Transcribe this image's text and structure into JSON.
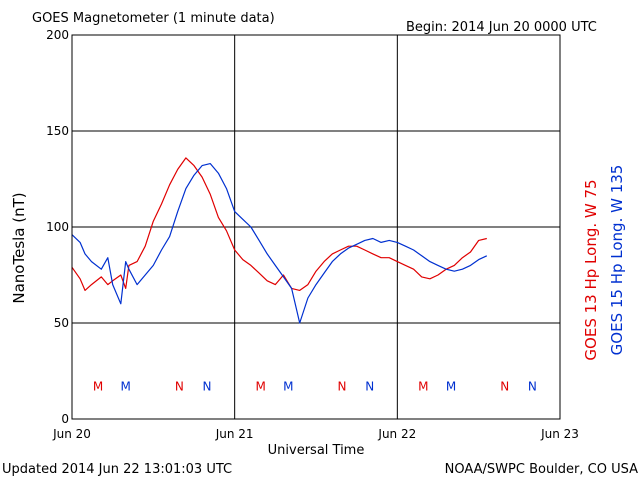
{
  "chart_data": {
    "type": "line",
    "title": "GOES Magnetometer (1 minute data)",
    "begin_label": "Begin:  2014 Jun 20 0000 UTC",
    "xlabel": "Universal Time",
    "ylabel": "NanoTesla (nT)",
    "x_unit_note": "x values are days after Jun 20 0000 UTC",
    "xlim": [
      0,
      3
    ],
    "ylim": [
      0,
      200
    ],
    "grid": true,
    "x_ticks": [
      {
        "x": 0,
        "label": "Jun 20"
      },
      {
        "x": 1,
        "label": "Jun 21"
      },
      {
        "x": 2,
        "label": "Jun 22"
      },
      {
        "x": 3,
        "label": "Jun 23"
      }
    ],
    "y_ticks": [
      {
        "y": 0,
        "label": "0"
      },
      {
        "y": 50,
        "label": "50"
      },
      {
        "y": 100,
        "label": "100"
      },
      {
        "y": 150,
        "label": "150"
      },
      {
        "y": 200,
        "label": "200"
      }
    ],
    "series": [
      {
        "name": "GOES 13 Hp  Long. W 75",
        "color": "#e00000",
        "x": [
          0,
          0.05,
          0.08,
          0.12,
          0.18,
          0.22,
          0.25,
          0.3,
          0.33,
          0.35,
          0.4,
          0.45,
          0.5,
          0.55,
          0.6,
          0.65,
          0.7,
          0.75,
          0.8,
          0.85,
          0.9,
          0.95,
          1.0,
          1.05,
          1.1,
          1.15,
          1.2,
          1.25,
          1.3,
          1.35,
          1.4,
          1.45,
          1.5,
          1.55,
          1.6,
          1.65,
          1.7,
          1.75,
          1.8,
          1.85,
          1.9,
          1.95,
          2.0,
          2.05,
          2.1,
          2.15,
          2.2,
          2.25,
          2.3,
          2.35,
          2.4,
          2.45,
          2.5,
          2.55
        ],
        "values": [
          79,
          73,
          67,
          70,
          74,
          70,
          72,
          75,
          68,
          80,
          82,
          90,
          103,
          112,
          122,
          130,
          136,
          132,
          126,
          117,
          105,
          98,
          88,
          83,
          80,
          76,
          72,
          70,
          75,
          68,
          67,
          70,
          77,
          82,
          86,
          88,
          90,
          90,
          88,
          86,
          84,
          84,
          82,
          80,
          78,
          74,
          73,
          75,
          78,
          80,
          84,
          87,
          93,
          94
        ]
      },
      {
        "name": "GOES 15 Hp  Long. W 135",
        "color": "#0030d0",
        "x": [
          0,
          0.05,
          0.08,
          0.12,
          0.18,
          0.22,
          0.25,
          0.3,
          0.33,
          0.35,
          0.4,
          0.45,
          0.5,
          0.55,
          0.6,
          0.65,
          0.7,
          0.75,
          0.8,
          0.85,
          0.9,
          0.95,
          1.0,
          1.05,
          1.1,
          1.15,
          1.2,
          1.25,
          1.3,
          1.35,
          1.4,
          1.45,
          1.5,
          1.55,
          1.6,
          1.65,
          1.7,
          1.75,
          1.8,
          1.85,
          1.9,
          1.95,
          2.0,
          2.05,
          2.1,
          2.15,
          2.2,
          2.25,
          2.3,
          2.35,
          2.4,
          2.45,
          2.5,
          2.55
        ],
        "values": [
          96,
          92,
          86,
          82,
          78,
          84,
          70,
          60,
          82,
          78,
          70,
          75,
          80,
          88,
          95,
          108,
          120,
          127,
          132,
          133,
          128,
          120,
          108,
          104,
          100,
          93,
          86,
          80,
          74,
          68,
          50,
          63,
          70,
          76,
          82,
          86,
          89,
          91,
          93,
          94,
          92,
          93,
          92,
          90,
          88,
          85,
          82,
          80,
          78,
          77,
          78,
          80,
          83,
          85
        ]
      }
    ],
    "markers": [
      {
        "x": 0.16,
        "label": "M",
        "color": "#e00000"
      },
      {
        "x": 0.33,
        "label": "M",
        "color": "#0030d0"
      },
      {
        "x": 0.66,
        "label": "N",
        "color": "#e00000"
      },
      {
        "x": 0.83,
        "label": "N",
        "color": "#0030d0"
      },
      {
        "x": 1.16,
        "label": "M",
        "color": "#e00000"
      },
      {
        "x": 1.33,
        "label": "M",
        "color": "#0030d0"
      },
      {
        "x": 1.66,
        "label": "N",
        "color": "#e00000"
      },
      {
        "x": 1.83,
        "label": "N",
        "color": "#0030d0"
      },
      {
        "x": 2.16,
        "label": "M",
        "color": "#e00000"
      },
      {
        "x": 2.33,
        "label": "M",
        "color": "#0030d0"
      },
      {
        "x": 2.66,
        "label": "N",
        "color": "#e00000"
      },
      {
        "x": 2.83,
        "label": "N",
        "color": "#0030d0"
      }
    ],
    "marker_level": 17
  },
  "footer": {
    "updated": "Updated 2014 Jun 22 13:01:03 UTC",
    "credit": "NOAA/SWPC Boulder, CO USA"
  }
}
